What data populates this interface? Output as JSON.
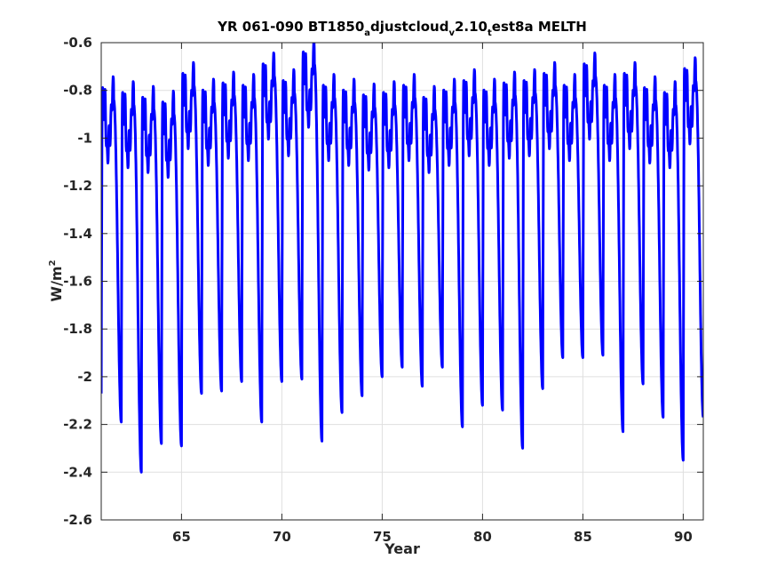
{
  "chart_data": {
    "type": "line",
    "title": {
      "parts": [
        {
          "text": "YR 061-090 BT1850",
          "pos": "base"
        },
        {
          "text": "a",
          "pos": "sub"
        },
        {
          "text": "djustcloud",
          "pos": "base"
        },
        {
          "text": "v",
          "pos": "sub"
        },
        {
          "text": "2.10",
          "pos": "base"
        },
        {
          "text": "t",
          "pos": "sub"
        },
        {
          "text": "est8a MELTH",
          "pos": "base"
        }
      ]
    },
    "xlabel": "Year",
    "ylabel": {
      "base": "W/m",
      "sup": "2"
    },
    "xlim": [
      61,
      91
    ],
    "ylim": [
      -2.6,
      -0.6
    ],
    "xticks": [
      65,
      70,
      75,
      80,
      85,
      90
    ],
    "yticks": [
      -2.6,
      -2.4,
      -2.2,
      -2.0,
      -1.8,
      -1.6,
      -1.4,
      -1.2,
      -1.0,
      -0.8,
      -0.6
    ],
    "xtick_labels": [
      "65",
      "70",
      "75",
      "80",
      "85",
      "90"
    ],
    "ytick_labels": [
      "-2.6",
      "-2.4",
      "-2.2",
      "-2",
      "-1.8",
      "-1.6",
      "-1.4",
      "-1.2",
      "-1",
      "-0.8",
      "-0.6"
    ],
    "grid": true,
    "series": [
      {
        "color": "#0000ff",
        "description": "Seasonal cycle per year (annual max, annual min)",
        "annual": [
          {
            "year": 61,
            "max": -0.79,
            "min": -2.07
          },
          {
            "year": 62,
            "max": -0.81,
            "min": -2.19
          },
          {
            "year": 63,
            "max": -0.83,
            "min": -2.4
          },
          {
            "year": 64,
            "max": -0.85,
            "min": -2.28
          },
          {
            "year": 65,
            "max": -0.73,
            "min": -2.29
          },
          {
            "year": 66,
            "max": -0.8,
            "min": -2.07
          },
          {
            "year": 67,
            "max": -0.77,
            "min": -2.06
          },
          {
            "year": 68,
            "max": -0.78,
            "min": -2.02
          },
          {
            "year": 69,
            "max": -0.69,
            "min": -2.19
          },
          {
            "year": 70,
            "max": -0.76,
            "min": -2.02
          },
          {
            "year": 71,
            "max": -0.64,
            "min": -2.01
          },
          {
            "year": 72,
            "max": -0.78,
            "min": -2.27
          },
          {
            "year": 73,
            "max": -0.8,
            "min": -2.15
          },
          {
            "year": 74,
            "max": -0.82,
            "min": -2.08
          },
          {
            "year": 75,
            "max": -0.81,
            "min": -2.0
          },
          {
            "year": 76,
            "max": -0.78,
            "min": -1.96
          },
          {
            "year": 77,
            "max": -0.83,
            "min": -2.04
          },
          {
            "year": 78,
            "max": -0.8,
            "min": -1.96
          },
          {
            "year": 79,
            "max": -0.76,
            "min": -2.21
          },
          {
            "year": 80,
            "max": -0.8,
            "min": -2.12
          },
          {
            "year": 81,
            "max": -0.77,
            "min": -2.14
          },
          {
            "year": 82,
            "max": -0.76,
            "min": -2.3
          },
          {
            "year": 83,
            "max": -0.73,
            "min": -2.05
          },
          {
            "year": 84,
            "max": -0.78,
            "min": -1.92
          },
          {
            "year": 85,
            "max": -0.69,
            "min": -1.92
          },
          {
            "year": 86,
            "max": -0.78,
            "min": -1.91
          },
          {
            "year": 87,
            "max": -0.73,
            "min": -2.23
          },
          {
            "year": 88,
            "max": -0.79,
            "min": -2.03
          },
          {
            "year": 89,
            "max": -0.81,
            "min": -2.17
          },
          {
            "year": 90,
            "max": -0.71,
            "min": -2.35
          }
        ],
        "end_value": -2.17
      }
    ]
  }
}
